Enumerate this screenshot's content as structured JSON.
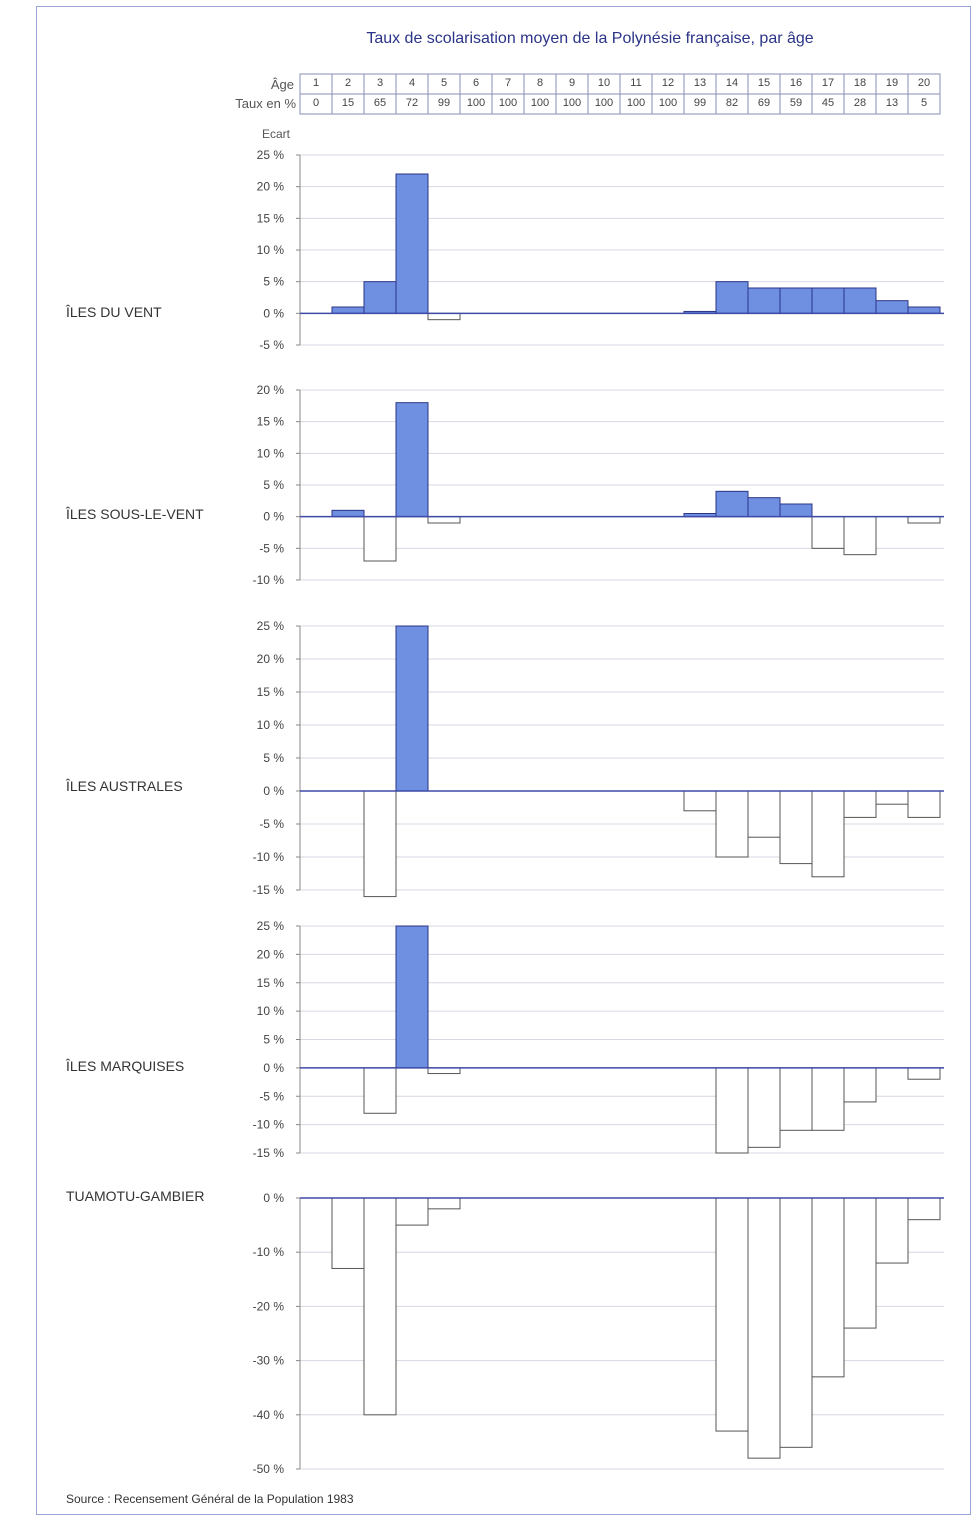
{
  "chart_data": {
    "type": "bar",
    "title": "Taux de scolarisation moyen de la Polynésie française, par âge",
    "ylabel": "Ecart",
    "age_label": "Âge",
    "rate_label": "Taux en %",
    "categories": [
      "1",
      "2",
      "3",
      "4",
      "5",
      "6",
      "7",
      "8",
      "9",
      "10",
      "11",
      "12",
      "13",
      "14",
      "15",
      "16",
      "17",
      "18",
      "19",
      "20"
    ],
    "rates": [
      "0",
      "15",
      "65",
      "72",
      "99",
      "100",
      "100",
      "100",
      "100",
      "100",
      "100",
      "100",
      "99",
      "82",
      "69",
      "59",
      "45",
      "28",
      "13",
      "5"
    ],
    "positive_color": "#6f8fe0",
    "negative_color": "#ffffff",
    "panels": [
      {
        "name": "ÎLES DU VENT",
        "ylim": [
          -5,
          25
        ],
        "ticks": [
          25,
          20,
          15,
          10,
          5,
          0,
          -5
        ],
        "tick_labels": [
          "25 %",
          "20 %",
          "15 %",
          "10 %",
          "5 %",
          "0 %",
          "-5 %"
        ],
        "values": [
          0,
          1,
          5,
          22,
          -1,
          0,
          0,
          0,
          0,
          0,
          0,
          0,
          0.3,
          5,
          4,
          4,
          4,
          4,
          2,
          1
        ]
      },
      {
        "name": "ÎLES SOUS-LE-VENT",
        "ylim": [
          -10,
          20
        ],
        "ticks": [
          20,
          15,
          10,
          5,
          0,
          -5,
          -10
        ],
        "tick_labels": [
          "20 %",
          "15 %",
          "10 %",
          "5 %",
          "0 %",
          "-5 %",
          "-10 %"
        ],
        "values": [
          0,
          1,
          -7,
          18,
          -1,
          0,
          0,
          0,
          0,
          0,
          0,
          0,
          0.5,
          4,
          3,
          2,
          -5,
          -6,
          0,
          -1
        ]
      },
      {
        "name": "ÎLES AUSTRALES",
        "ylim": [
          -15,
          25
        ],
        "ticks": [
          25,
          20,
          15,
          10,
          5,
          0,
          -5,
          -10,
          -15
        ],
        "tick_labels": [
          "25 %",
          "20 %",
          "15 %",
          "10 %",
          "5 %",
          "0 %",
          "-5 %",
          "-10 %",
          "-15 %"
        ],
        "values": [
          0,
          0,
          -16,
          25,
          0,
          0,
          0,
          0,
          0,
          0,
          0,
          0,
          -3,
          -10,
          -7,
          -11,
          -13,
          -4,
          -2,
          -4
        ]
      },
      {
        "name": "ÎLES MARQUISES",
        "ylim": [
          -15,
          25
        ],
        "ticks": [
          25,
          20,
          15,
          10,
          5,
          0,
          -5,
          -10,
          -15
        ],
        "tick_labels": [
          "25 %",
          "20 %",
          "15 %",
          "10 %",
          "5 %",
          "0 %",
          "-5 %",
          "-10 %",
          "-15 %"
        ],
        "values": [
          0,
          0,
          -8,
          25,
          -1,
          0,
          0,
          0,
          0,
          0,
          0,
          0,
          0,
          -15,
          -14,
          -11,
          -11,
          -6,
          0,
          -2
        ]
      },
      {
        "name": "TUAMOTU-GAMBIER",
        "ylim": [
          -50,
          0
        ],
        "ticks": [
          0,
          -10,
          -20,
          -30,
          -40,
          -50
        ],
        "tick_labels": [
          "0 %",
          "-10 %",
          "-20 %",
          "-30 %",
          "-40 %",
          "-50 %"
        ],
        "values": [
          0,
          -13,
          -40,
          -5,
          -2,
          0,
          0,
          0,
          0,
          0,
          0,
          0,
          0,
          -43,
          -48,
          -46,
          -33,
          -24,
          -12,
          -4
        ]
      }
    ],
    "source": "Source : Recensement Général de la Population 1983"
  }
}
